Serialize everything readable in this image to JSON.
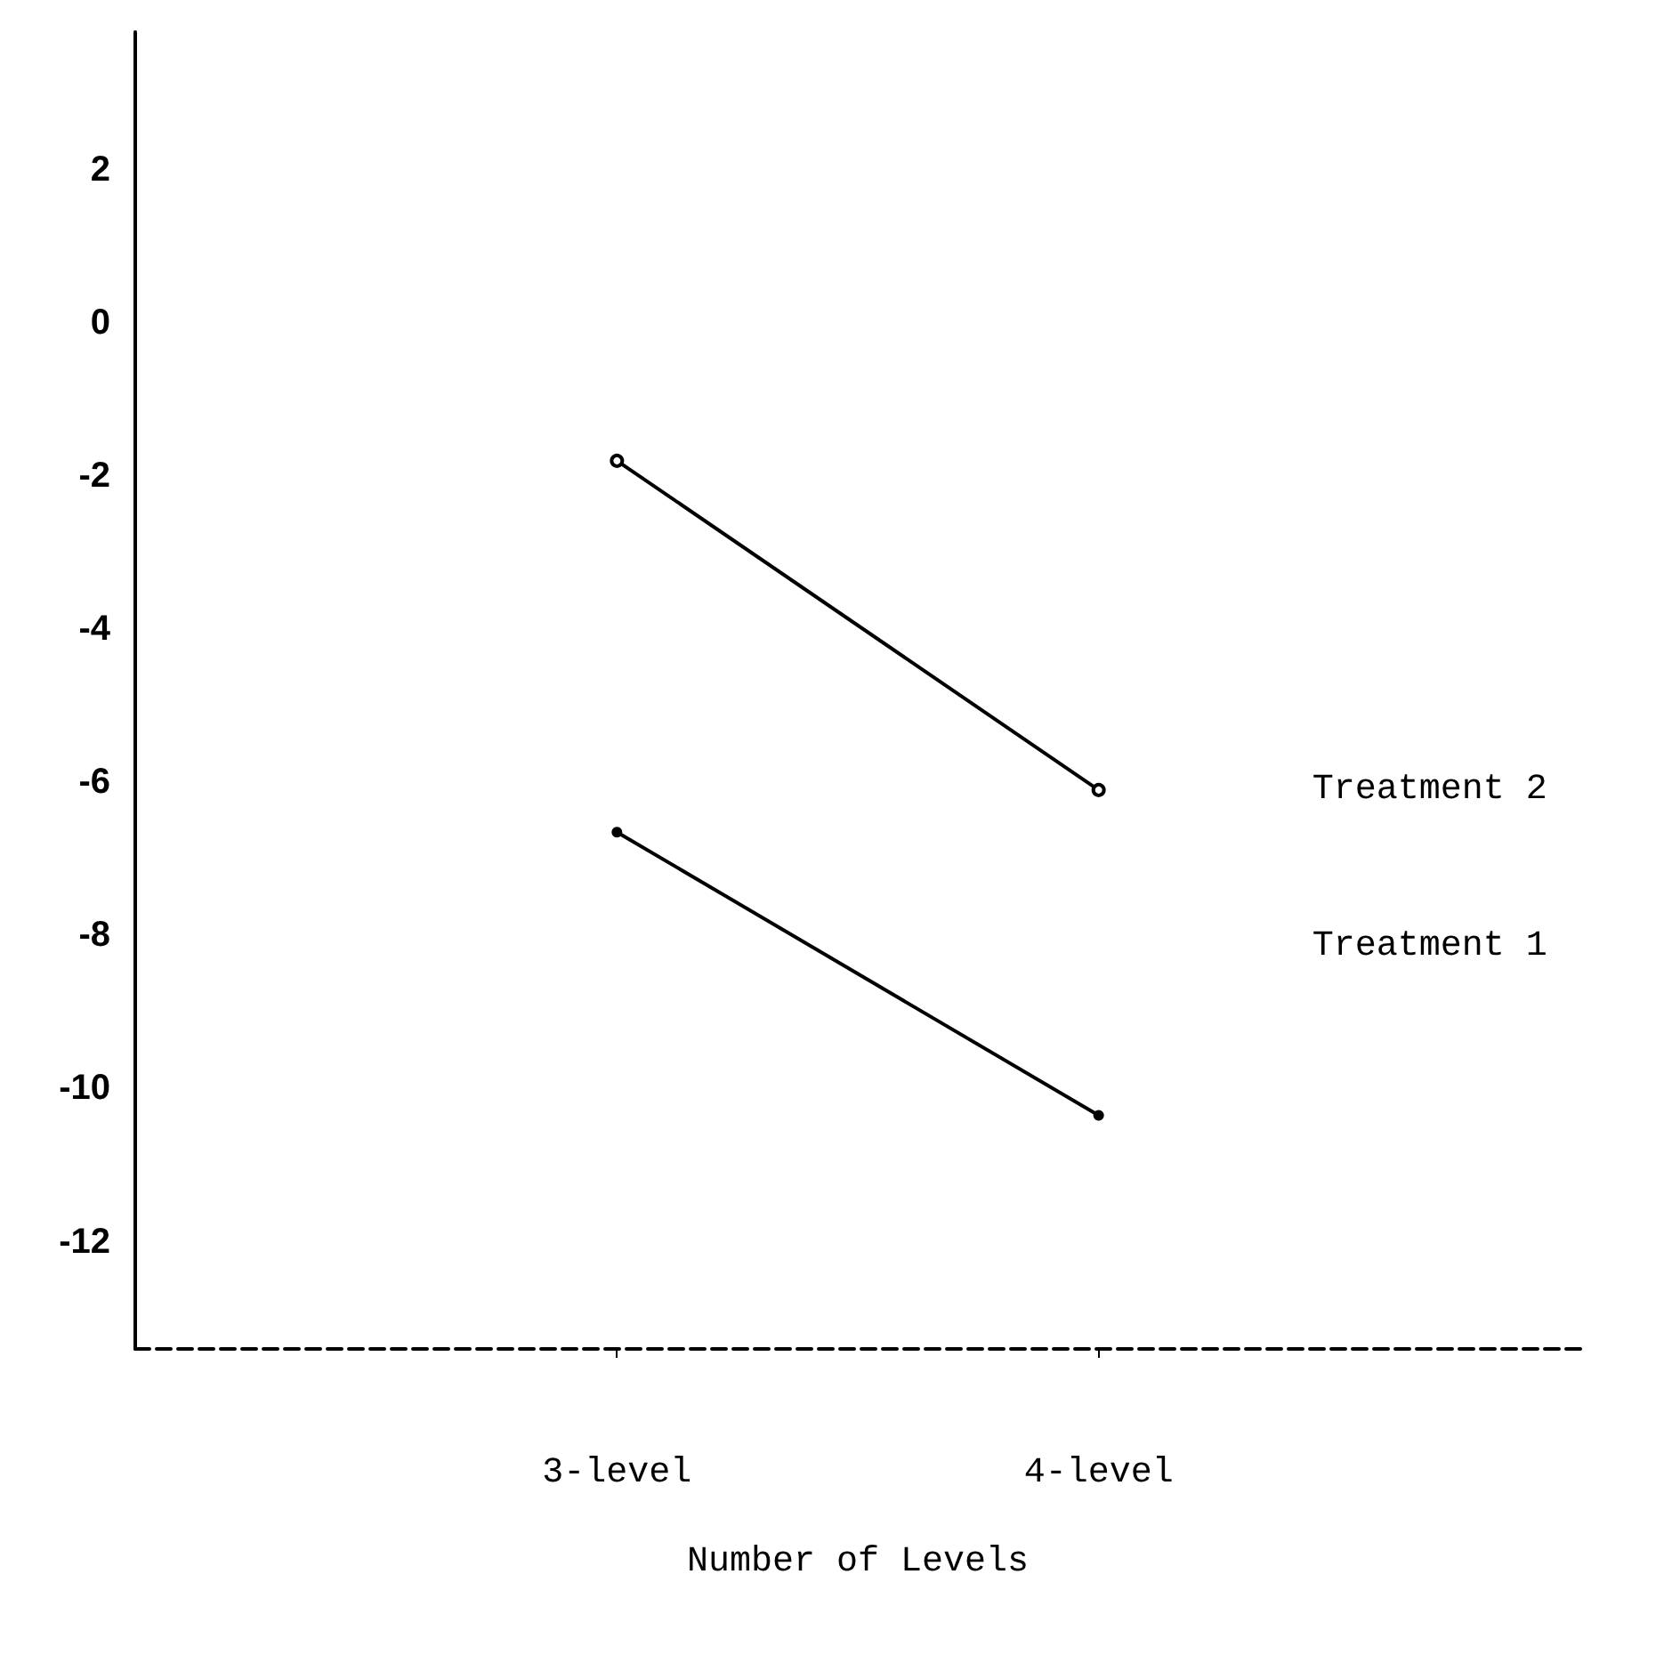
{
  "chart_data": {
    "type": "line",
    "xlabel": "Number of Levels",
    "categories": [
      "3-level",
      "4-level"
    ],
    "series": [
      {
        "name": "Treatment 2",
        "color": "#000000",
        "values": [
          -1.8,
          -6.1
        ]
      },
      {
        "name": "Treatment 1",
        "color": "#000000",
        "values": [
          -6.65,
          -10.35
        ]
      }
    ],
    "ylim": [
      -13.4,
      3.8
    ],
    "yticks": [
      -12,
      -10,
      -8,
      -6,
      -4,
      -2,
      0,
      2
    ],
    "grid": false,
    "legend": false,
    "marker": "circle",
    "line_style": "solid"
  }
}
